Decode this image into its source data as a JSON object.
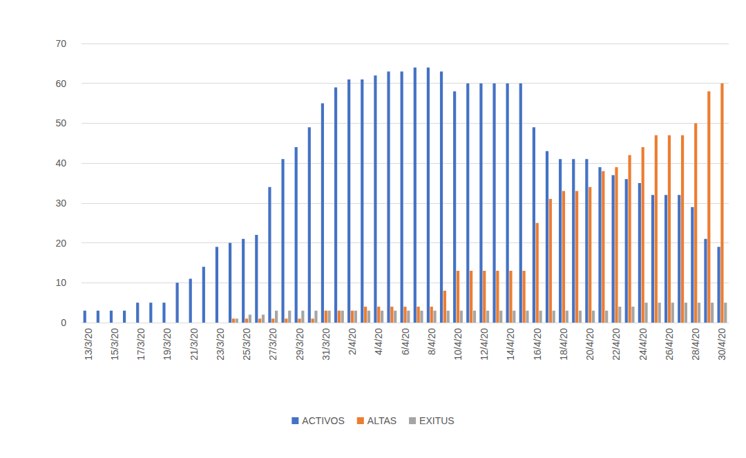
{
  "chart_data": {
    "type": "bar",
    "categories": [
      "13/3/20",
      null,
      "15/3/20",
      null,
      "17/3/20",
      null,
      "19/3/20",
      null,
      "21/3/20",
      null,
      "23/3/20",
      null,
      "25/3/20",
      null,
      "27/3/20",
      null,
      "29/3/20",
      null,
      "31/3/20",
      null,
      "2/4/20",
      null,
      "4/4/20",
      null,
      "6/4/20",
      null,
      "8/4/20",
      null,
      "10/4/20",
      null,
      "12/4/20",
      null,
      "14/4/20",
      null,
      "16/4/20",
      null,
      "18/4/20",
      null,
      "20/4/20",
      null,
      "22/4/20",
      null,
      "24/4/20",
      null,
      "26/4/20",
      null,
      "28/4/20",
      null,
      "30/4/20"
    ],
    "series": [
      {
        "name": "ACTIVOS",
        "color": "#4472c4",
        "values": [
          3,
          3,
          3,
          3,
          5,
          5,
          5,
          10,
          11,
          14,
          19,
          20,
          21,
          22,
          34,
          41,
          44,
          49,
          55,
          59,
          61,
          61,
          62,
          63,
          63,
          64,
          64,
          63,
          58,
          60,
          60,
          60,
          60,
          60,
          49,
          43,
          41,
          41,
          41,
          39,
          37,
          36,
          35,
          32,
          32,
          32,
          29,
          21,
          19
        ]
      },
      {
        "name": "ALTAS",
        "color": "#ed7d31",
        "values": [
          0,
          0,
          0,
          0,
          0,
          0,
          0,
          0,
          0,
          0,
          0,
          1,
          1,
          1,
          1,
          1,
          1,
          1,
          3,
          3,
          3,
          4,
          4,
          4,
          4,
          4,
          4,
          8,
          13,
          13,
          13,
          13,
          13,
          13,
          25,
          31,
          33,
          33,
          34,
          38,
          39,
          42,
          44,
          47,
          47,
          47,
          50,
          58,
          60
        ]
      },
      {
        "name": "EXITUS",
        "color": "#a5a5a5",
        "values": [
          0,
          0,
          0,
          0,
          0,
          0,
          0,
          0,
          0,
          0,
          0,
          1,
          2,
          2,
          3,
          3,
          3,
          3,
          3,
          3,
          3,
          3,
          3,
          3,
          3,
          3,
          3,
          3,
          3,
          3,
          3,
          3,
          3,
          3,
          3,
          3,
          3,
          3,
          3,
          3,
          4,
          4,
          5,
          5,
          5,
          5,
          5,
          5,
          5
        ]
      }
    ],
    "ylim": [
      0,
      70
    ],
    "yticks": [
      0,
      10,
      20,
      30,
      40,
      50,
      60,
      70
    ],
    "grid": true,
    "legend": "bottom"
  }
}
